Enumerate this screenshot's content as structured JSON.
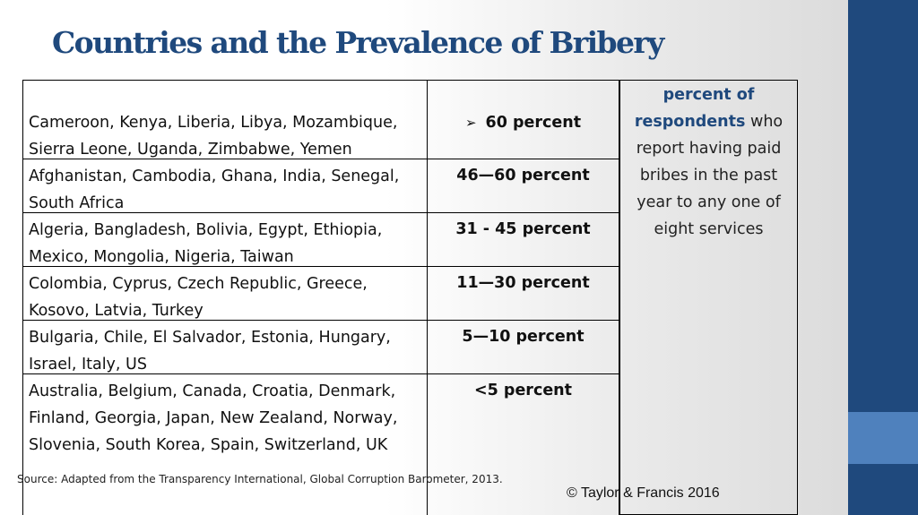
{
  "title": "Countries and the Prevalence of Bribery",
  "rows": [
    {
      "countries": "Cameroon, Kenya, Liberia, Libya, Mozambique, Sierra Leone, Uganda, Zimbabwe, Yemen",
      "range": "60 percent"
    },
    {
      "countries": "Afghanistan, Cambodia, Ghana, India, Senegal, South Africa",
      "range": "46—60 percent"
    },
    {
      "countries": "Algeria, Bangladesh, Bolivia, Egypt, Ethiopia, Mexico, Mongolia, Nigeria, Taiwan",
      "range": "31 - 45 percent"
    },
    {
      "countries": "Colombia, Cyprus, Czech Republic, Greece, Kosovo, Latvia, Turkey",
      "range": "11—30 percent"
    },
    {
      "countries": "Bulgaria, Chile, El Salvador, Estonia, Hungary, Israel, Italy, US",
      "range": "5—10 percent"
    },
    {
      "countries": "Australia, Belgium, Canada, Croatia, Denmark, Finland, Georgia, Japan, New Zealand, Norway, Slovenia, South Korea, Spain, Switzerland, UK",
      "range": "<5 percent"
    }
  ],
  "note": {
    "highlight": "percent of respondents",
    "rest": "who report having paid bribes in the past year to any one of eight services"
  },
  "source": "Source: Adapted from the Transparency International, Global Corruption Barometer, 2013.",
  "copyright": "© Taylor & Francis 2016",
  "colors": {
    "title": "#1f497d",
    "bar": "#1f497d",
    "bar_accent": "#4f81bd"
  },
  "icons": {
    "first_row_bullet": "arrow-bullet-icon"
  }
}
